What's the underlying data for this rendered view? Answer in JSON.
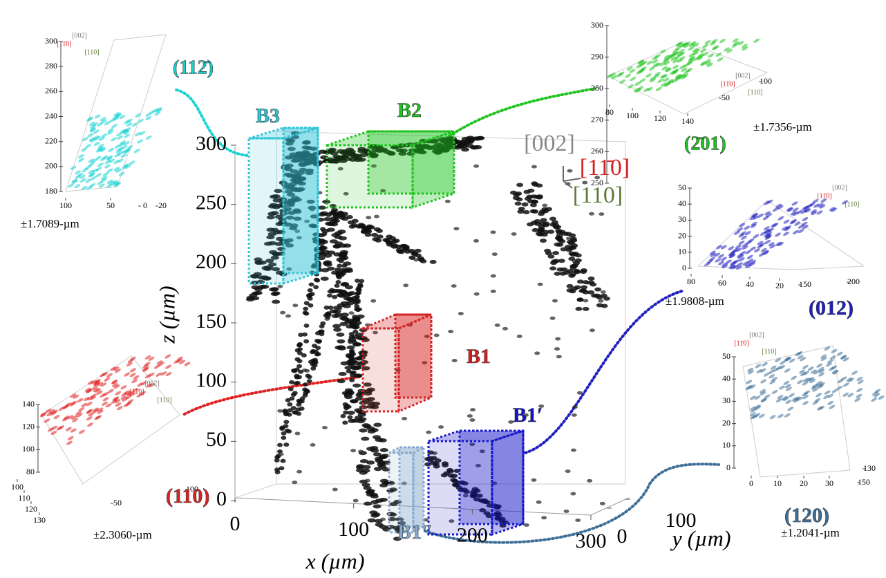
{
  "main": {
    "zticks": [
      0,
      50,
      100,
      150,
      200,
      250,
      300
    ],
    "xticks": [
      0,
      100,
      200,
      300
    ],
    "yticks": [
      0,
      100
    ],
    "x_label": "x (µm)",
    "y_label": "y (µm)",
    "z_label": "z (µm)",
    "directions": [
      "[002]",
      "[11̄0]",
      "[110]"
    ]
  },
  "boxes": [
    {
      "label": "B3",
      "color": "#2ec4d6"
    },
    {
      "label": "B2",
      "color": "#1fc21f"
    },
    {
      "label": "B1",
      "color": "#d42020"
    },
    {
      "label": "B1′",
      "color": "#1414c8"
    },
    {
      "label": "B1″",
      "color": "#86a9cc"
    }
  ],
  "insets": [
    {
      "plane": "(112̄)",
      "precision": "±1.7089-µm",
      "color": "#18d2d2",
      "zticks": [
        180,
        200,
        220,
        240,
        260,
        280,
        300
      ],
      "xticks": [
        100,
        50
      ],
      "yticks": [
        0,
        20
      ],
      "directions": [
        "[002]",
        "[11̄0]",
        "[110]"
      ]
    },
    {
      "plane": "(2̄01)",
      "precision": "±1.7356-µm",
      "color": "#22c422",
      "zticks": [
        250,
        260,
        270,
        280,
        290,
        300
      ],
      "xticks": [
        80,
        100,
        120,
        140
      ],
      "yticks": [
        50,
        100
      ],
      "directions": [
        "[002]",
        "[11̄0]",
        "[110]"
      ]
    },
    {
      "plane": "(012)",
      "precision": "±1.9808-µm",
      "color": "#2020c0",
      "zticks": [
        0,
        10,
        20,
        30,
        40,
        50
      ],
      "xticks": [
        80,
        60,
        40,
        20
      ],
      "yticks": [
        150,
        200
      ],
      "directions": [
        "[002]",
        "[11̄0]",
        "[110]"
      ]
    },
    {
      "plane": "(120)",
      "precision": "±1.2041-µm",
      "color": "#3f6f98",
      "zticks": [
        0,
        10,
        20,
        30,
        40,
        50
      ],
      "xticks": [
        0,
        10,
        20,
        30
      ],
      "yticks": [
        130,
        150
      ],
      "directions": [
        "[002]",
        "[11̄0]",
        "[110]"
      ]
    },
    {
      "plane": "(110)",
      "precision": "±2.3060-µm",
      "color": "#e02020",
      "zticks": [
        80,
        100,
        120,
        140
      ],
      "xticks": [
        100,
        110,
        120,
        130
      ],
      "yticks": [
        50,
        100
      ],
      "directions": [
        "[002]",
        "[11̄0]",
        "[110]"
      ]
    }
  ]
}
